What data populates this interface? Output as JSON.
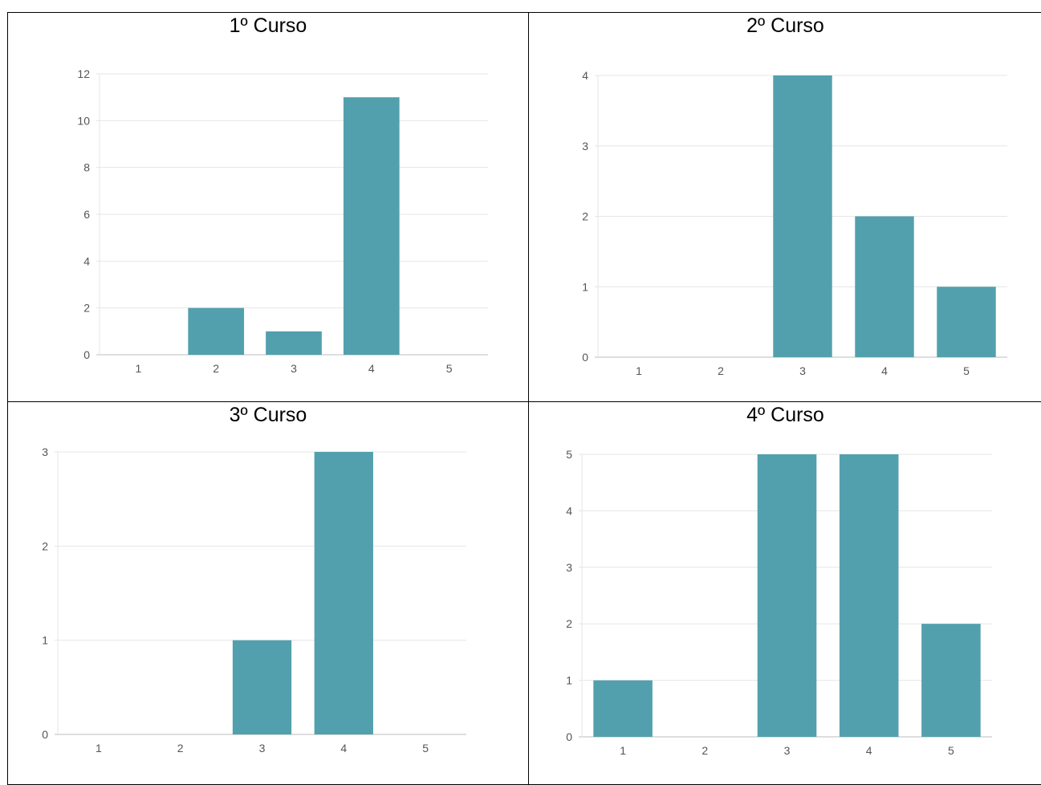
{
  "colors": {
    "bar": "#52a0ad",
    "grid": "#e6e6e6",
    "axis": "#bdbdbd",
    "tick_text": "#555555"
  },
  "chart_data": [
    {
      "type": "bar",
      "title": "1º Curso",
      "categories": [
        "1",
        "2",
        "3",
        "4",
        "5"
      ],
      "values": [
        0,
        2,
        1,
        11,
        0
      ],
      "ylim": [
        0,
        12
      ],
      "yticks": [
        0,
        2,
        4,
        6,
        8,
        10,
        12
      ],
      "grid": true,
      "legend": "none"
    },
    {
      "type": "bar",
      "title": "2º Curso",
      "categories": [
        "1",
        "2",
        "3",
        "4",
        "5"
      ],
      "values": [
        0,
        0,
        4,
        2,
        1
      ],
      "ylim": [
        0,
        4
      ],
      "yticks": [
        0,
        1,
        2,
        3,
        4
      ],
      "grid": true,
      "legend": "none"
    },
    {
      "type": "bar",
      "title": "3º Curso",
      "categories": [
        "1",
        "2",
        "3",
        "4",
        "5"
      ],
      "values": [
        0,
        0,
        1,
        3,
        0
      ],
      "ylim": [
        0,
        3
      ],
      "yticks": [
        0,
        1,
        2,
        3
      ],
      "grid": true,
      "legend": "none"
    },
    {
      "type": "bar",
      "title": "4º Curso",
      "categories": [
        "1",
        "2",
        "3",
        "4",
        "5"
      ],
      "values": [
        1,
        0,
        5,
        5,
        2
      ],
      "ylim": [
        0,
        5
      ],
      "yticks": [
        0,
        1,
        2,
        3,
        4,
        5
      ],
      "grid": true,
      "legend": "none"
    }
  ]
}
